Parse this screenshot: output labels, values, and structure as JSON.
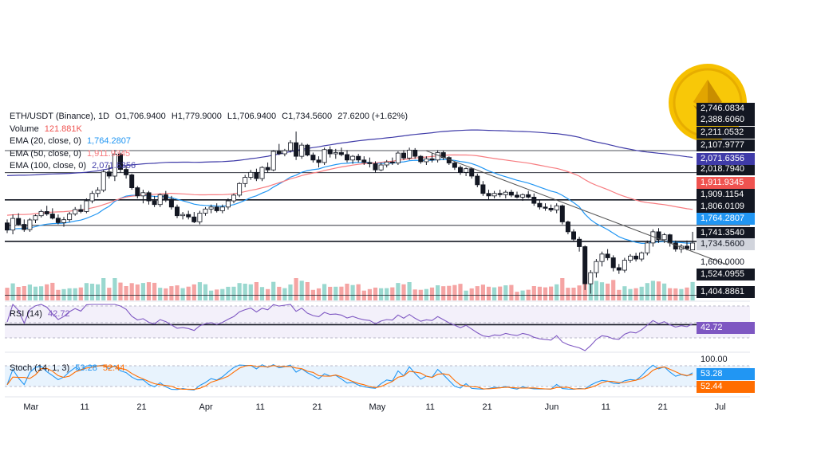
{
  "symbol": {
    "title": "ETH/USDT (Binance), 1D",
    "open": "O1,706.9400",
    "high": "H1,779.9000",
    "low": "L1,706.9400",
    "close": "C1,734.5600",
    "change": "27.6200 (+1.62%)"
  },
  "legend": {
    "volume_label": "Volume",
    "volume_value": "121.881K",
    "ema20_label": "EMA (20, close, 0)",
    "ema20_value": "1,764.2807",
    "ema50_label": "EMA (50, close, 0)",
    "ema50_value": "1,911.9345",
    "ema100_label": "EMA (100, close, 0)",
    "ema100_value": "2,071.6356"
  },
  "rsi": {
    "label": "RSI (14)",
    "value": "42.72"
  },
  "stoch": {
    "label": "Stoch (14, 1, 3)",
    "k_value": "53.28",
    "d_value": "52.44",
    "top_level": "100.00"
  },
  "colors": {
    "up": "#26a69a",
    "down": "#ef5350",
    "ema20": "#2196f3",
    "ema50": "#f77c80",
    "ema100": "#3f3ba8",
    "rsi": "#7e57c2",
    "stoch_k": "#2196f3",
    "stoch_d": "#ff6d00",
    "coin": "#f6c000"
  },
  "logo": {
    "icon": "ethereum-coin-icon"
  },
  "price_scale": {
    "levels": [
      "2,746.0834",
      "2,388.6060",
      "2,211.0532",
      "2,107.9777",
      "2,018.7940",
      "1,909.1154",
      "1,806.0109",
      "1,741.3540",
      "1,600.0000",
      "1,524.0955",
      "1,404.8861"
    ],
    "ema100_tag": "2,071.6356",
    "ema50_tag": "1,911.9345",
    "ema20_tag": "1,764.2807",
    "last_tag": "1,734.5600"
  },
  "x_axis": [
    "Mar",
    "11",
    "21",
    "Apr",
    "11",
    "21",
    "May",
    "11",
    "21",
    "Jun",
    "11",
    "21",
    "Jul"
  ],
  "chart_data": {
    "type": "candlestick",
    "horizontal_levels": [
      2107.9777,
      2018.794,
      1909.1154,
      1806.0109,
      1741.354,
      1524.0955,
      1404.8861
    ],
    "trendline": {
      "from": [
        "2023-05-10",
        2107.0
      ],
      "to": [
        "2023-06-26",
        1700.0
      ]
    },
    "candles": [
      [
        "2023-02-25",
        1816,
        1830,
        1775,
        1787
      ],
      [
        "2023-02-26",
        1787,
        1850,
        1770,
        1834
      ],
      [
        "2023-02-27",
        1834,
        1855,
        1805,
        1810
      ],
      [
        "2023-02-28",
        1810,
        1830,
        1780,
        1789
      ],
      [
        "2023-03-01",
        1789,
        1835,
        1780,
        1828
      ],
      [
        "2023-03-02",
        1828,
        1850,
        1815,
        1845
      ],
      [
        "2023-03-03",
        1845,
        1870,
        1838,
        1862
      ],
      [
        "2023-03-04",
        1862,
        1885,
        1845,
        1852
      ],
      [
        "2023-03-05",
        1852,
        1875,
        1830,
        1835
      ],
      [
        "2023-03-06",
        1835,
        1850,
        1810,
        1817
      ],
      [
        "2023-03-07",
        1817,
        1840,
        1800,
        1829
      ],
      [
        "2023-03-08",
        1829,
        1860,
        1820,
        1852
      ],
      [
        "2023-03-09",
        1852,
        1880,
        1845,
        1870
      ],
      [
        "2023-03-10",
        1870,
        1890,
        1855,
        1862
      ],
      [
        "2023-03-11",
        1862,
        1915,
        1855,
        1905
      ],
      [
        "2023-03-12",
        1905,
        1945,
        1895,
        1935
      ],
      [
        "2023-03-13",
        1935,
        1960,
        1920,
        1948
      ],
      [
        "2023-03-14",
        1948,
        2030,
        1940,
        2022
      ],
      [
        "2023-03-15",
        2022,
        2050,
        1995,
        2005
      ],
      [
        "2023-03-16",
        2005,
        2110,
        1985,
        2094
      ],
      [
        "2023-03-17",
        2094,
        2100,
        2020,
        2032
      ],
      [
        "2023-03-18",
        2032,
        2045,
        1995,
        2010
      ],
      [
        "2023-03-19",
        2010,
        2015,
        1950,
        1958
      ],
      [
        "2023-03-20",
        1958,
        1965,
        1915,
        1925
      ],
      [
        "2023-03-21",
        1925,
        1950,
        1895,
        1938
      ],
      [
        "2023-03-22",
        1938,
        1945,
        1890,
        1905
      ],
      [
        "2023-03-23",
        1905,
        1925,
        1880,
        1890
      ],
      [
        "2023-03-24",
        1890,
        1935,
        1880,
        1930
      ],
      [
        "2023-03-25",
        1930,
        1945,
        1900,
        1912
      ],
      [
        "2023-03-26",
        1912,
        1925,
        1870,
        1880
      ],
      [
        "2023-03-27",
        1880,
        1890,
        1835,
        1845
      ],
      [
        "2023-03-28",
        1845,
        1860,
        1830,
        1850
      ],
      [
        "2023-03-29",
        1850,
        1865,
        1830,
        1840
      ],
      [
        "2023-03-30",
        1840,
        1860,
        1815,
        1820
      ],
      [
        "2023-03-31",
        1820,
        1865,
        1810,
        1855
      ],
      [
        "2023-04-01",
        1855,
        1880,
        1845,
        1872
      ],
      [
        "2023-04-02",
        1872,
        1890,
        1855,
        1880
      ],
      [
        "2023-04-03",
        1880,
        1895,
        1858,
        1865
      ],
      [
        "2023-04-04",
        1865,
        1890,
        1855,
        1880
      ],
      [
        "2023-04-05",
        1880,
        1915,
        1870,
        1905
      ],
      [
        "2023-04-06",
        1905,
        1935,
        1895,
        1928
      ],
      [
        "2023-04-07",
        1928,
        1980,
        1920,
        1975
      ],
      [
        "2023-04-08",
        1975,
        2010,
        1960,
        2000
      ],
      [
        "2023-04-09",
        2000,
        2030,
        1990,
        2020
      ],
      [
        "2023-04-10",
        2020,
        2035,
        1985,
        1995
      ],
      [
        "2023-04-11",
        1995,
        2045,
        1985,
        2040
      ],
      [
        "2023-04-12",
        2040,
        2060,
        2020,
        2030
      ],
      [
        "2023-04-13",
        2030,
        2110,
        2025,
        2105
      ],
      [
        "2023-04-14",
        2105,
        2135,
        2090,
        2095
      ],
      [
        "2023-04-15",
        2095,
        2115,
        2085,
        2108
      ],
      [
        "2023-04-16",
        2108,
        2150,
        2100,
        2140
      ],
      [
        "2023-04-17",
        2140,
        2185,
        2070,
        2085
      ],
      [
        "2023-04-18",
        2085,
        2140,
        2075,
        2130
      ],
      [
        "2023-04-19",
        2130,
        2135,
        2085,
        2090
      ],
      [
        "2023-04-20",
        2090,
        2100,
        2060,
        2070
      ],
      [
        "2023-04-21",
        2070,
        2085,
        2040,
        2060
      ],
      [
        "2023-04-22",
        2060,
        2120,
        2050,
        2112
      ],
      [
        "2023-04-23",
        2112,
        2125,
        2080,
        2095
      ],
      [
        "2023-04-24",
        2095,
        2115,
        2075,
        2100
      ],
      [
        "2023-04-25",
        2100,
        2120,
        2085,
        2092
      ],
      [
        "2023-04-26",
        2092,
        2110,
        2060,
        2070
      ],
      [
        "2023-04-27",
        2070,
        2090,
        2055,
        2085
      ],
      [
        "2023-04-28",
        2085,
        2095,
        2060,
        2070
      ],
      [
        "2023-04-29",
        2070,
        2085,
        2050,
        2060
      ],
      [
        "2023-04-30",
        2060,
        2080,
        2040,
        2055
      ],
      [
        "2023-05-01",
        2055,
        2065,
        2020,
        2030
      ],
      [
        "2023-05-02",
        2030,
        2060,
        2025,
        2050
      ],
      [
        "2023-05-03",
        2050,
        2070,
        2040,
        2062
      ],
      [
        "2023-05-04",
        2062,
        2080,
        2050,
        2058
      ],
      [
        "2023-05-05",
        2058,
        2105,
        2050,
        2098
      ],
      [
        "2023-05-06",
        2098,
        2110,
        2070,
        2078
      ],
      [
        "2023-05-07",
        2078,
        2120,
        2070,
        2110
      ],
      [
        "2023-05-08",
        2110,
        2118,
        2075,
        2085
      ],
      [
        "2023-05-09",
        2085,
        2090,
        2055,
        2063
      ],
      [
        "2023-05-10",
        2063,
        2085,
        2050,
        2075
      ],
      [
        "2023-05-11",
        2075,
        2100,
        2060,
        2070
      ],
      [
        "2023-05-12",
        2070,
        2110,
        2060,
        2100
      ],
      [
        "2023-05-13",
        2100,
        2108,
        2070,
        2080
      ],
      [
        "2023-05-14",
        2080,
        2085,
        2050,
        2058
      ],
      [
        "2023-05-15",
        2058,
        2065,
        2030,
        2040
      ],
      [
        "2023-05-16",
        2040,
        2048,
        2010,
        2020
      ],
      [
        "2023-05-17",
        2020,
        2040,
        2005,
        2035
      ],
      [
        "2023-05-18",
        2035,
        2040,
        1995,
        2005
      ],
      [
        "2023-05-19",
        2005,
        2015,
        1960,
        1970
      ],
      [
        "2023-05-20",
        1970,
        1985,
        1925,
        1935
      ],
      [
        "2023-05-21",
        1935,
        1950,
        1910,
        1925
      ],
      [
        "2023-05-22",
        1925,
        1945,
        1915,
        1935
      ],
      [
        "2023-05-23",
        1935,
        1950,
        1920,
        1930
      ],
      [
        "2023-05-24",
        1930,
        1948,
        1915,
        1940
      ],
      [
        "2023-05-25",
        1940,
        1950,
        1920,
        1928
      ],
      [
        "2023-05-26",
        1928,
        1942,
        1915,
        1920
      ],
      [
        "2023-05-27",
        1920,
        1935,
        1905,
        1930
      ],
      [
        "2023-05-28",
        1930,
        1945,
        1915,
        1920
      ],
      [
        "2023-05-29",
        1920,
        1935,
        1885,
        1895
      ],
      [
        "2023-05-30",
        1895,
        1910,
        1870,
        1880
      ],
      [
        "2023-05-31",
        1880,
        1895,
        1865,
        1875
      ],
      [
        "2023-06-01",
        1875,
        1890,
        1860,
        1868
      ],
      [
        "2023-06-02",
        1868,
        1895,
        1855,
        1885
      ],
      [
        "2023-06-03",
        1885,
        1890,
        1810,
        1820
      ],
      [
        "2023-06-04",
        1820,
        1825,
        1770,
        1780
      ],
      [
        "2023-06-05",
        1780,
        1790,
        1740,
        1750
      ],
      [
        "2023-06-06",
        1750,
        1760,
        1700,
        1720
      ],
      [
        "2023-06-07",
        1720,
        1725,
        1545,
        1570
      ],
      [
        "2023-06-08",
        1570,
        1625,
        1530,
        1615
      ],
      [
        "2023-06-09",
        1615,
        1670,
        1595,
        1660
      ],
      [
        "2023-06-10",
        1660,
        1700,
        1640,
        1690
      ],
      [
        "2023-06-11",
        1690,
        1710,
        1665,
        1675
      ],
      [
        "2023-06-12",
        1675,
        1685,
        1620,
        1635
      ],
      [
        "2023-06-13",
        1635,
        1650,
        1610,
        1625
      ],
      [
        "2023-06-14",
        1625,
        1675,
        1615,
        1665
      ],
      [
        "2023-06-15",
        1665,
        1690,
        1655,
        1682
      ],
      [
        "2023-06-16",
        1682,
        1695,
        1660,
        1670
      ],
      [
        "2023-06-17",
        1670,
        1700,
        1660,
        1695
      ],
      [
        "2023-06-18",
        1695,
        1745,
        1685,
        1735
      ],
      [
        "2023-06-19",
        1735,
        1790,
        1720,
        1780
      ],
      [
        "2023-06-20",
        1780,
        1795,
        1735,
        1748
      ],
      [
        "2023-06-21",
        1748,
        1775,
        1735,
        1768
      ],
      [
        "2023-06-22",
        1768,
        1772,
        1720,
        1735
      ],
      [
        "2023-06-23",
        1735,
        1745,
        1700,
        1710
      ],
      [
        "2023-06-24",
        1710,
        1730,
        1695,
        1722
      ],
      [
        "2023-06-25",
        1722,
        1745,
        1705,
        1712
      ],
      [
        "2023-06-26",
        1706.94,
        1779.9,
        1706.94,
        1734.56
      ]
    ]
  }
}
